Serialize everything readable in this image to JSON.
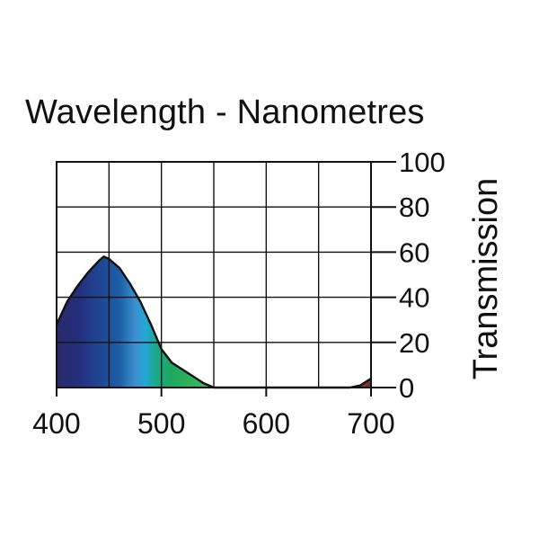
{
  "chart_data": {
    "type": "area",
    "title": "Wavelength - Nanometres",
    "xlabel": "",
    "ylabel": "Transmission",
    "xlim": [
      400,
      700
    ],
    "ylim": [
      0,
      100
    ],
    "x_ticks": [
      "400",
      "500",
      "600",
      "700"
    ],
    "y_ticks": [
      "0",
      "20",
      "40",
      "60",
      "80",
      "100"
    ],
    "grid": true,
    "series": [
      {
        "x": [
          400,
          410,
          420,
          430,
          440,
          445,
          450,
          460,
          470,
          480,
          490,
          500,
          510,
          520,
          530,
          540,
          550,
          560,
          600,
          650,
          670,
          680,
          690,
          700
        ],
        "values": [
          28,
          38,
          45,
          51,
          56,
          58,
          57,
          53,
          46,
          38,
          28,
          17,
          11,
          8,
          5,
          2,
          0,
          0,
          0,
          0,
          0,
          0,
          1,
          4
        ]
      }
    ],
    "fill_stops": [
      {
        "x": 400,
        "color": "#2a2a68"
      },
      {
        "x": 420,
        "color": "#242e7c"
      },
      {
        "x": 440,
        "color": "#1f4491"
      },
      {
        "x": 460,
        "color": "#1d5ea5"
      },
      {
        "x": 475,
        "color": "#3b8fd0"
      },
      {
        "x": 485,
        "color": "#23a7d6"
      },
      {
        "x": 495,
        "color": "#1aa886"
      },
      {
        "x": 510,
        "color": "#1ea860"
      },
      {
        "x": 530,
        "color": "#2fb25c"
      },
      {
        "x": 550,
        "color": "#4bb860"
      },
      {
        "x": 680,
        "color": "#8a3b2e"
      },
      {
        "x": 700,
        "color": "#7a3226"
      }
    ]
  }
}
